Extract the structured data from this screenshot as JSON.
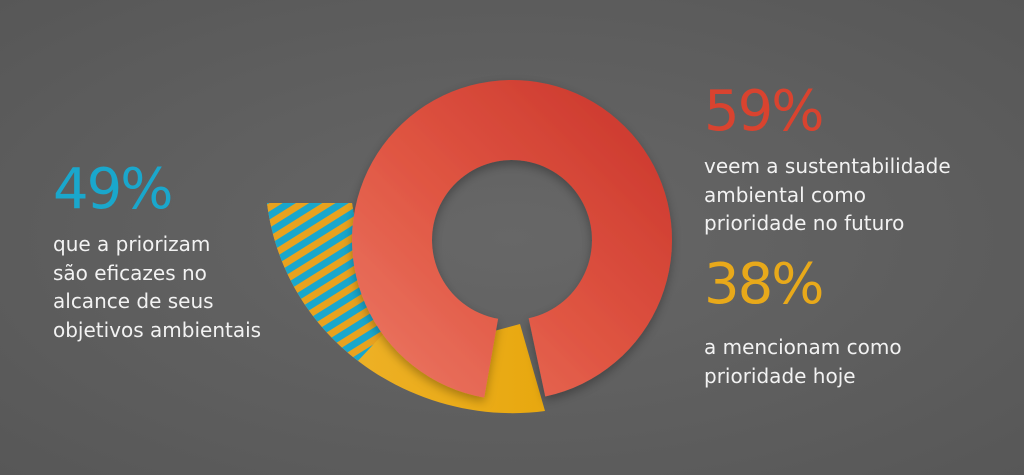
{
  "colors": {
    "background": "#5f5f5f",
    "red": "#d9432f",
    "yellow": "#e8a91a",
    "blue": "#1aa7cc"
  },
  "chart_data": {
    "type": "pie",
    "style": "donut infographic",
    "series": [
      {
        "value": 59,
        "label": "59%",
        "description": "veem a sustentabilidade ambiental como prioridade no futuro",
        "color": "#d9432f"
      },
      {
        "value": 38,
        "label": "38%",
        "description": "a mencionam como prioridade hoje",
        "color": "#e8a91a"
      },
      {
        "value": 49,
        "label": "49%",
        "description": "que a priorizam são eficazes no alcance de seus objetivos ambientais",
        "color": "#1aa7cc",
        "pattern": "striped"
      }
    ]
  },
  "stats": {
    "future": {
      "pct": "59%",
      "lines": [
        "veem a sustentabilidade",
        "ambiental como",
        "prioridade no futuro"
      ]
    },
    "today": {
      "pct": "38%",
      "lines": [
        "a mencionam como",
        "prioridade hoje"
      ]
    },
    "effective": {
      "pct": "49%",
      "lines": [
        "que a priorizam",
        "são eficazes no",
        "alcance de seus",
        "objetivos ambientais"
      ]
    }
  }
}
